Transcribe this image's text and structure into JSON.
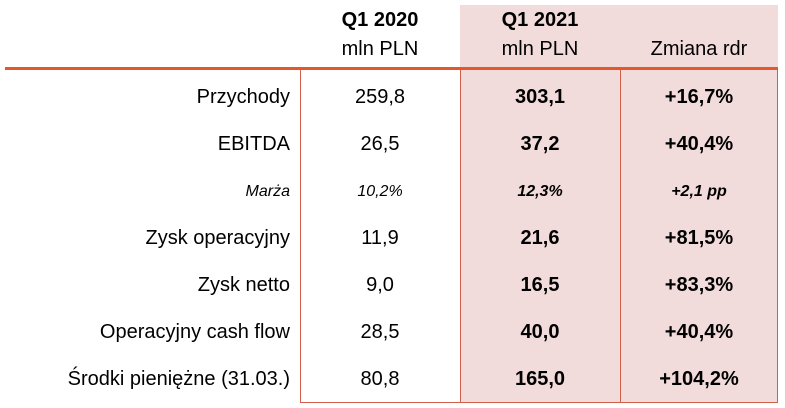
{
  "table": {
    "columns": [
      {
        "title": "Q1 2020",
        "unit": "mln PLN"
      },
      {
        "title": "Q1 2021",
        "unit": "mln PLN"
      },
      {
        "title": "Zmiana rdr"
      }
    ],
    "rows": [
      [
        "Przychody",
        "259,8",
        "303,1",
        "+16,7%"
      ],
      [
        "EBITDA",
        "26,5",
        "37,2",
        "+40,4%"
      ],
      [
        "Marża",
        "10,2%",
        "12,3%",
        "+2,1 pp"
      ],
      [
        "Zysk operacyjny",
        "11,9",
        "21,6",
        "+81,5%"
      ],
      [
        "Zysk netto",
        "9,0",
        "16,5",
        "+83,3%"
      ],
      [
        "Operacyjny cash flow",
        "28,5",
        "40,0",
        "+40,4%"
      ],
      [
        "Środki pieniężne (31.03.)",
        "80,8",
        "165,0",
        "+104,2%"
      ]
    ]
  }
}
